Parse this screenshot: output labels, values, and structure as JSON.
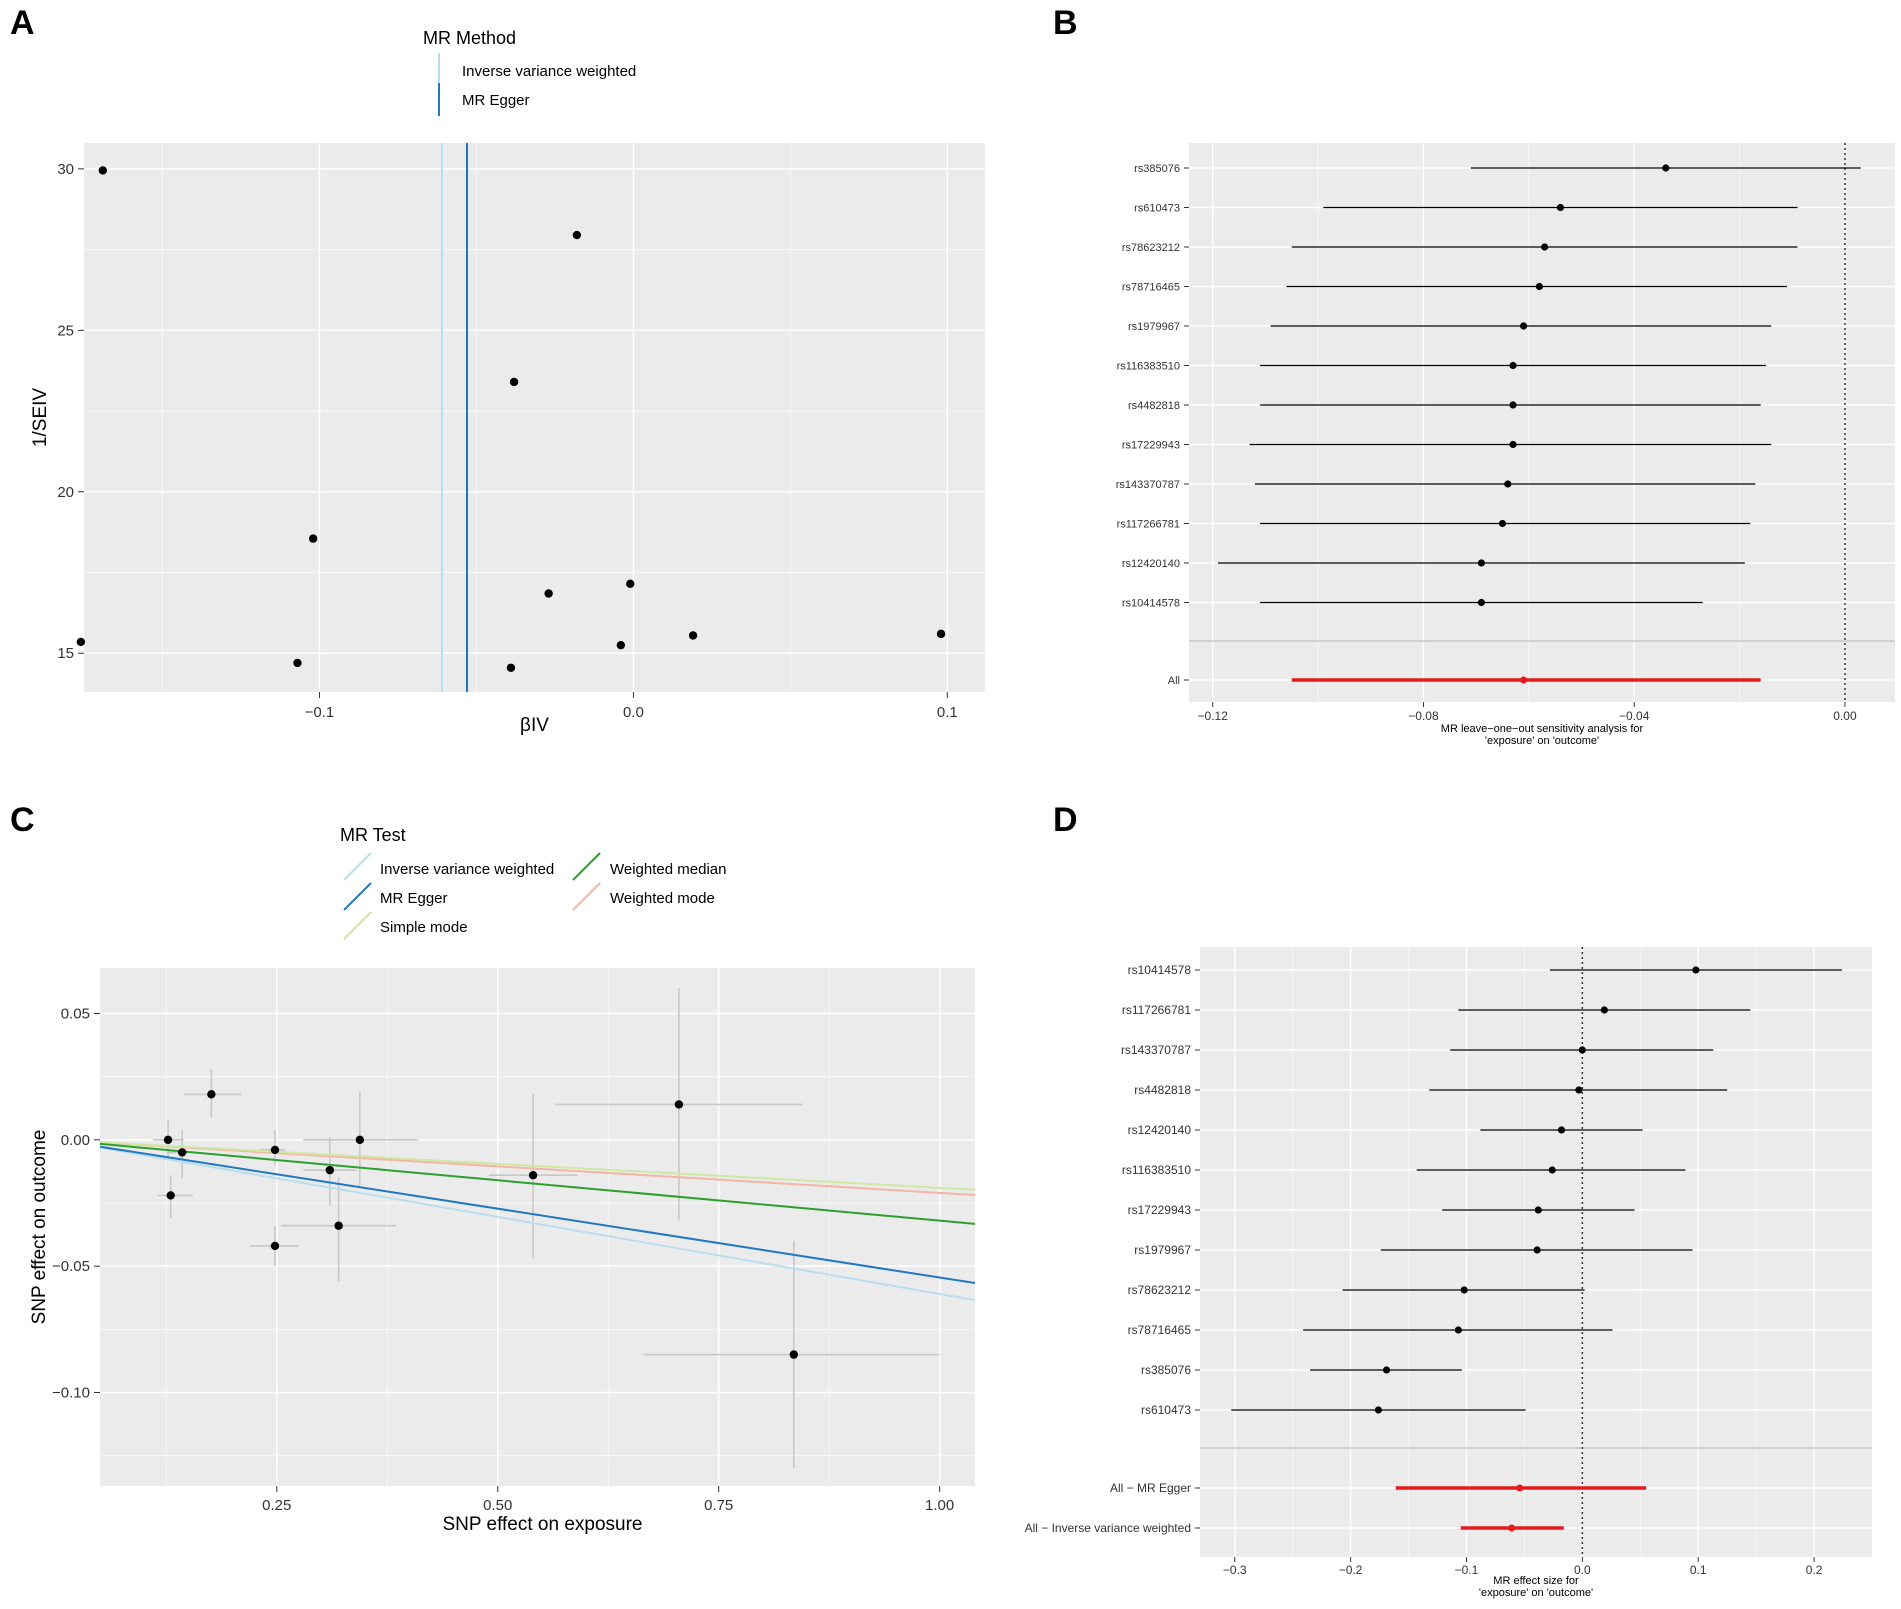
{
  "chart_data": [
    {
      "panel": "A",
      "type": "scatter",
      "title": "",
      "xlabel": "βIV",
      "ylabel": "1/SEIV",
      "xlim": [
        -0.175,
        0.112
      ],
      "ylim": [
        13.8,
        30.8
      ],
      "xticks": [
        -0.1,
        0.0,
        0.1
      ],
      "xtick_labels": [
        "−0.1",
        "0.0",
        "0.1"
      ],
      "yticks": [
        15,
        20,
        25,
        30
      ],
      "ytick_labels": [
        "15",
        "20",
        "25",
        "30"
      ],
      "legend": {
        "title": "MR Method",
        "position": "top",
        "entries": [
          {
            "label": "Inverse variance weighted",
            "color": "#b9dcef"
          },
          {
            "label": "MR Egger",
            "color": "#1f78c0"
          }
        ]
      },
      "vlines": [
        {
          "name": "Inverse variance weighted",
          "x": -0.061,
          "color": "#b9dcef"
        },
        {
          "name": "MR Egger",
          "x": -0.053,
          "color": "#1f78c0"
        }
      ],
      "points": [
        {
          "x": -0.169,
          "y": 29.95
        },
        {
          "x": -0.018,
          "y": 27.95
        },
        {
          "x": -0.038,
          "y": 23.4
        },
        {
          "x": -0.102,
          "y": 18.55
        },
        {
          "x": -0.001,
          "y": 17.15
        },
        {
          "x": -0.027,
          "y": 16.85
        },
        {
          "x": 0.019,
          "y": 15.55
        },
        {
          "x": 0.098,
          "y": 15.6
        },
        {
          "x": -0.176,
          "y": 15.35
        },
        {
          "x": -0.004,
          "y": 15.25
        },
        {
          "x": -0.107,
          "y": 14.7
        },
        {
          "x": -0.039,
          "y": 14.55
        }
      ]
    },
    {
      "panel": "B",
      "type": "forest",
      "xlabel_lines": [
        "MR leave−one−out sensitivity analysis for",
        "'exposure' on 'outcome'"
      ],
      "xlim": [
        -0.1245,
        0.0095
      ],
      "xticks": [
        -0.12,
        -0.08,
        -0.04,
        0.0
      ],
      "xtick_labels": [
        "−0.12",
        "−0.08",
        "−0.04",
        "0.00"
      ],
      "reference_x": 0,
      "rows": [
        {
          "label": "rs385076",
          "est": -0.034,
          "lo": -0.071,
          "hi": 0.003
        },
        {
          "label": "rs610473",
          "est": -0.054,
          "lo": -0.099,
          "hi": -0.009
        },
        {
          "label": "rs78623212",
          "est": -0.057,
          "lo": -0.105,
          "hi": -0.009
        },
        {
          "label": "rs78716465",
          "est": -0.058,
          "lo": -0.106,
          "hi": -0.011
        },
        {
          "label": "rs1979967",
          "est": -0.061,
          "lo": -0.109,
          "hi": -0.014
        },
        {
          "label": "rs116383510",
          "est": -0.063,
          "lo": -0.111,
          "hi": -0.015
        },
        {
          "label": "rs4482818",
          "est": -0.063,
          "lo": -0.111,
          "hi": -0.016
        },
        {
          "label": "rs17229943",
          "est": -0.063,
          "lo": -0.113,
          "hi": -0.014
        },
        {
          "label": "rs143370787",
          "est": -0.064,
          "lo": -0.112,
          "hi": -0.017
        },
        {
          "label": "rs117266781",
          "est": -0.065,
          "lo": -0.111,
          "hi": -0.018
        },
        {
          "label": "rs12420140",
          "est": -0.069,
          "lo": -0.119,
          "hi": -0.019
        },
        {
          "label": "rs10414578",
          "est": -0.069,
          "lo": -0.111,
          "hi": -0.027
        }
      ],
      "summary_rows": [
        {
          "label": "All",
          "est": -0.061,
          "lo": -0.105,
          "hi": -0.016,
          "color": "#e41a1c"
        }
      ]
    },
    {
      "panel": "C",
      "type": "scatter",
      "xlabel": "SNP effect on exposure",
      "ylabel": "SNP effect on outcome",
      "xlim": [
        0.05,
        1.04
      ],
      "ylim": [
        -0.137,
        0.068
      ],
      "xticks": [
        0.25,
        0.5,
        0.75,
        1.0
      ],
      "xtick_labels": [
        "0.25",
        "0.50",
        "0.75",
        "1.00"
      ],
      "yticks": [
        0.05,
        0.0,
        -0.05,
        -0.1
      ],
      "ytick_labels": [
        "0.05",
        "0.00",
        "−0.05",
        "−0.10"
      ],
      "legend": {
        "title": "MR Test",
        "position": "top",
        "entries": [
          {
            "label": "Inverse variance weighted",
            "color": "#b9dcef"
          },
          {
            "label": "MR Egger",
            "color": "#1f78c0"
          },
          {
            "label": "Simple mode",
            "color": "#cfe8a4"
          },
          {
            "label": "Weighted median",
            "color": "#2ca02c"
          },
          {
            "label": "Weighted mode",
            "color": "#f4b5a6"
          }
        ]
      },
      "lines": [
        {
          "name": "Inverse variance weighted",
          "intercept": 0.0,
          "slope": -0.061,
          "color": "#b9dcef"
        },
        {
          "name": "MR Egger",
          "intercept": 0.0,
          "slope": -0.0545,
          "color": "#1f78c0"
        },
        {
          "name": "Simple mode",
          "intercept": 0.0,
          "slope": -0.019,
          "color": "#cfe8a4"
        },
        {
          "name": "Weighted median",
          "intercept": 0.0,
          "slope": -0.032,
          "color": "#2ca02c"
        },
        {
          "name": "Weighted mode",
          "intercept": 0.0,
          "slope": -0.021,
          "color": "#f4b5a6"
        }
      ],
      "points": [
        {
          "x": 0.127,
          "y": 0.0,
          "xlo": 0.11,
          "xhi": 0.145,
          "ylo": -0.008,
          "yhi": 0.008
        },
        {
          "x": 0.176,
          "y": 0.018,
          "xlo": 0.145,
          "xhi": 0.21,
          "ylo": 0.009,
          "yhi": 0.028
        },
        {
          "x": 0.13,
          "y": -0.022,
          "xlo": 0.115,
          "xhi": 0.155,
          "ylo": -0.031,
          "yhi": -0.014
        },
        {
          "x": 0.143,
          "y": -0.005,
          "xlo": 0.125,
          "xhi": 0.16,
          "ylo": -0.015,
          "yhi": 0.004
        },
        {
          "x": 0.248,
          "y": -0.004,
          "xlo": 0.23,
          "xhi": 0.26,
          "ylo": -0.01,
          "yhi": 0.004
        },
        {
          "x": 0.248,
          "y": -0.042,
          "xlo": 0.22,
          "xhi": 0.275,
          "ylo": -0.05,
          "yhi": -0.034
        },
        {
          "x": 0.31,
          "y": -0.012,
          "xlo": 0.28,
          "xhi": 0.34,
          "ylo": -0.026,
          "yhi": 0.001
        },
        {
          "x": 0.32,
          "y": -0.034,
          "xlo": 0.255,
          "xhi": 0.385,
          "ylo": -0.056,
          "yhi": -0.015
        },
        {
          "x": 0.344,
          "y": 0.0,
          "xlo": 0.28,
          "xhi": 0.41,
          "ylo": -0.018,
          "yhi": 0.019
        },
        {
          "x": 0.54,
          "y": -0.014,
          "xlo": 0.49,
          "xhi": 0.59,
          "ylo": -0.047,
          "yhi": 0.018
        },
        {
          "x": 0.705,
          "y": 0.014,
          "xlo": 0.565,
          "xhi": 0.845,
          "ylo": -0.032,
          "yhi": 0.06
        },
        {
          "x": 0.835,
          "y": -0.085,
          "xlo": 0.665,
          "xhi": 1.0,
          "ylo": -0.13,
          "yhi": -0.04
        }
      ]
    },
    {
      "panel": "D",
      "type": "forest",
      "xlabel_lines": [
        "MR effect size for",
        "'exposure' on 'outcome'"
      ],
      "xlim": [
        -0.33,
        0.25
      ],
      "xticks": [
        -0.3,
        -0.2,
        -0.1,
        0.0,
        0.1,
        0.2
      ],
      "xtick_labels": [
        "−0.3",
        "−0.2",
        "−0.1",
        "0.0",
        "0.1",
        "0.2"
      ],
      "reference_x": 0,
      "rows": [
        {
          "label": "rs10414578",
          "est": 0.098,
          "lo": -0.028,
          "hi": 0.224
        },
        {
          "label": "rs117266781",
          "est": 0.019,
          "lo": -0.107,
          "hi": 0.145
        },
        {
          "label": "rs143370787",
          "est": 0.0,
          "lo": -0.114,
          "hi": 0.113
        },
        {
          "label": "rs4482818",
          "est": -0.003,
          "lo": -0.132,
          "hi": 0.125
        },
        {
          "label": "rs12420140",
          "est": -0.018,
          "lo": -0.088,
          "hi": 0.052
        },
        {
          "label": "rs116383510",
          "est": -0.026,
          "lo": -0.143,
          "hi": 0.089
        },
        {
          "label": "rs17229943",
          "est": -0.038,
          "lo": -0.121,
          "hi": 0.045
        },
        {
          "label": "rs1979967",
          "est": -0.039,
          "lo": -0.174,
          "hi": 0.095
        },
        {
          "label": "rs78623212",
          "est": -0.102,
          "lo": -0.207,
          "hi": 0.002
        },
        {
          "label": "rs78716465",
          "est": -0.107,
          "lo": -0.241,
          "hi": 0.026
        },
        {
          "label": "rs385076",
          "est": -0.169,
          "lo": -0.235,
          "hi": -0.104
        },
        {
          "label": "rs610473",
          "est": -0.176,
          "lo": -0.303,
          "hi": -0.049
        }
      ],
      "summary_rows": [
        {
          "label": "All − MR Egger",
          "est": -0.054,
          "lo": -0.161,
          "hi": 0.055,
          "color": "#e41a1c"
        },
        {
          "label": "All − Inverse variance weighted",
          "est": -0.061,
          "lo": -0.105,
          "hi": -0.016,
          "color": "#e41a1c"
        }
      ]
    }
  ]
}
